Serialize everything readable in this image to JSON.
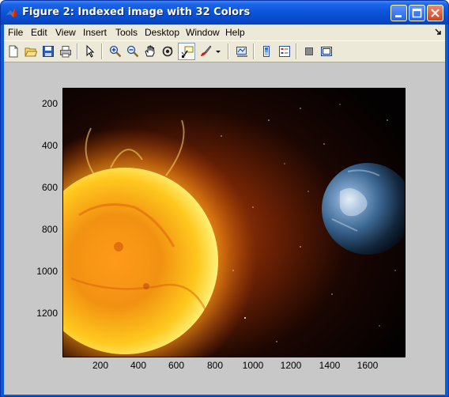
{
  "window": {
    "title": "Figure 2: Indexed image with 32 Colors",
    "buttons": {
      "minimize": "minimize-icon",
      "maximize": "maximize-icon",
      "close": "close-icon"
    }
  },
  "menu": {
    "items": [
      "File",
      "Edit",
      "View",
      "Insert",
      "Tools",
      "Desktop",
      "Window",
      "Help"
    ]
  },
  "toolbar": {
    "buttons": [
      "new-figure-icon",
      "open-file-icon",
      "save-figure-icon",
      "print-figure-icon",
      "edit-plot-arrow-icon",
      "zoom-in-icon",
      "zoom-out-icon",
      "pan-hand-icon",
      "rotate-3d-icon",
      "data-cursor-icon",
      "brush-icon",
      "brush-dropdown-icon",
      "link-plot-icon",
      "insert-colorbar-icon",
      "insert-legend-icon",
      "hide-plot-tools-icon",
      "show-plot-tools-icon"
    ]
  },
  "axes": {
    "image_content": "sun and earth in space",
    "xticks": [
      "200",
      "400",
      "600",
      "800",
      "1000",
      "1200",
      "1400",
      "1600"
    ],
    "yticks": [
      "200",
      "400",
      "600",
      "800",
      "1000",
      "1200"
    ],
    "xlim": [
      1,
      1800
    ],
    "ylim": [
      1,
      1400
    ]
  },
  "colors": {
    "title_bar": "#0a54d8",
    "figure_background": "#c8c8c8",
    "chrome_background": "#ece9d8"
  }
}
